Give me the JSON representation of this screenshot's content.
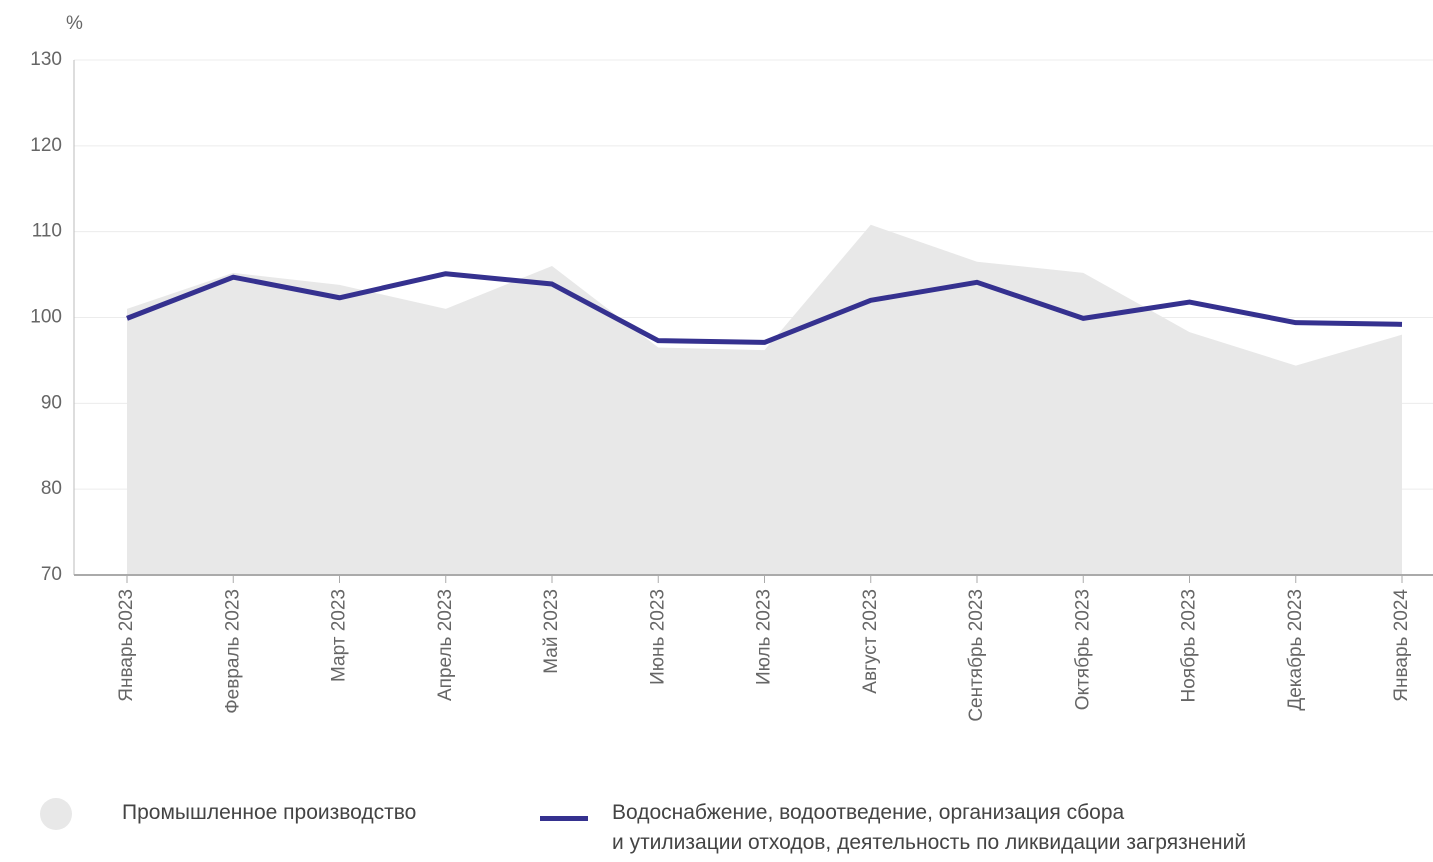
{
  "chart_data": {
    "type": "line",
    "unit_label": "%",
    "categories": [
      "Январь 2023",
      "Февраль 2023",
      "Март 2023",
      "Апрель 2023",
      "Май 2023",
      "Июнь 2023",
      "Июль 2023",
      "Август 2023",
      "Сентябрь 2023",
      "Октябрь 2023",
      "Ноябрь 2023",
      "Декабрь 2023",
      "Январь 2024"
    ],
    "series": [
      {
        "name": "Промышленное производство",
        "kind": "area",
        "color": "#e8e8e8",
        "values": [
          101.0,
          105.2,
          103.8,
          101.0,
          106.0,
          96.5,
          96.2,
          110.8,
          106.5,
          105.2,
          98.3,
          94.4,
          98.0
        ]
      },
      {
        "name": "Водоснабжение, водоотведение, организация сбора\nи утилизации отходов, деятельность по ликвидации загрязнений",
        "kind": "line",
        "color": "#35318f",
        "values": [
          99.9,
          104.7,
          102.3,
          105.1,
          103.9,
          97.3,
          97.1,
          102.0,
          104.1,
          99.9,
          101.8,
          99.4,
          99.2
        ]
      }
    ],
    "ylim": [
      70,
      130
    ],
    "yticks": [
      70,
      80,
      90,
      100,
      110,
      120,
      130
    ],
    "grid": true
  }
}
